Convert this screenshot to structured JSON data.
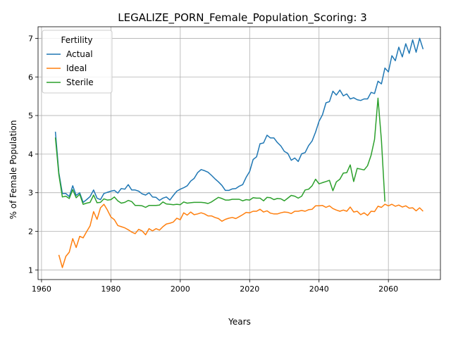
{
  "chart_data": {
    "type": "line",
    "title": "LEGALIZE_PORN_Female_Population_Scoring: 3",
    "xlabel": "Years",
    "ylabel": "% of Female Population",
    "xlim": [
      1959,
      2075
    ],
    "ylim": [
      0.75,
      7.3
    ],
    "xticks": [
      1960,
      1980,
      2000,
      2020,
      2040,
      2060
    ],
    "yticks": [
      1,
      2,
      3,
      4,
      5,
      6,
      7
    ],
    "grid": true,
    "legend": {
      "title": "Fertility",
      "placement": "upper-left"
    },
    "series": [
      {
        "name": "Actual",
        "color": "#1f77b4",
        "points": [
          [
            1964,
            4.58
          ],
          [
            1965,
            3.52
          ],
          [
            1966,
            2.98
          ],
          [
            1967,
            2.98
          ],
          [
            1968,
            2.9
          ],
          [
            1969,
            3.18
          ],
          [
            1970,
            2.93
          ],
          [
            1971,
            3.0
          ],
          [
            1972,
            2.75
          ],
          [
            1973,
            2.82
          ],
          [
            1974,
            2.9
          ],
          [
            1975,
            3.07
          ],
          [
            1976,
            2.86
          ],
          [
            1977,
            2.82
          ],
          [
            1978,
            2.98
          ],
          [
            1979,
            3.01
          ],
          [
            1980,
            3.04
          ],
          [
            1981,
            3.06
          ],
          [
            1982,
            2.99
          ],
          [
            1983,
            3.11
          ],
          [
            1984,
            3.09
          ],
          [
            1985,
            3.21
          ],
          [
            1986,
            3.07
          ],
          [
            1987,
            3.07
          ],
          [
            1988,
            3.04
          ],
          [
            1989,
            2.97
          ],
          [
            1990,
            2.94
          ],
          [
            1991,
            3.0
          ],
          [
            1992,
            2.89
          ],
          [
            1993,
            2.88
          ],
          [
            1994,
            2.8
          ],
          [
            1995,
            2.86
          ],
          [
            1996,
            2.89
          ],
          [
            1997,
            2.81
          ],
          [
            1998,
            2.93
          ],
          [
            1999,
            3.04
          ],
          [
            2000,
            3.09
          ],
          [
            2001,
            3.13
          ],
          [
            2002,
            3.18
          ],
          [
            2003,
            3.3
          ],
          [
            2004,
            3.37
          ],
          [
            2005,
            3.52
          ],
          [
            2006,
            3.6
          ],
          [
            2007,
            3.57
          ],
          [
            2008,
            3.53
          ],
          [
            2009,
            3.45
          ],
          [
            2010,
            3.36
          ],
          [
            2011,
            3.28
          ],
          [
            2012,
            3.19
          ],
          [
            2013,
            3.06
          ],
          [
            2014,
            3.06
          ],
          [
            2015,
            3.1
          ],
          [
            2016,
            3.11
          ],
          [
            2017,
            3.17
          ],
          [
            2018,
            3.21
          ],
          [
            2019,
            3.4
          ],
          [
            2020,
            3.55
          ],
          [
            2021,
            3.86
          ],
          [
            2022,
            3.93
          ],
          [
            2023,
            4.27
          ],
          [
            2024,
            4.29
          ],
          [
            2025,
            4.49
          ],
          [
            2026,
            4.42
          ],
          [
            2027,
            4.42
          ],
          [
            2028,
            4.3
          ],
          [
            2029,
            4.21
          ],
          [
            2030,
            4.07
          ],
          [
            2031,
            4.02
          ],
          [
            2032,
            3.84
          ],
          [
            2033,
            3.9
          ],
          [
            2034,
            3.81
          ],
          [
            2035,
            4.01
          ],
          [
            2036,
            4.04
          ],
          [
            2037,
            4.22
          ],
          [
            2038,
            4.34
          ],
          [
            2039,
            4.57
          ],
          [
            2040,
            4.85
          ],
          [
            2041,
            5.02
          ],
          [
            2042,
            5.33
          ],
          [
            2043,
            5.36
          ],
          [
            2044,
            5.63
          ],
          [
            2045,
            5.53
          ],
          [
            2046,
            5.66
          ],
          [
            2047,
            5.51
          ],
          [
            2048,
            5.56
          ],
          [
            2049,
            5.43
          ],
          [
            2050,
            5.46
          ],
          [
            2051,
            5.41
          ],
          [
            2052,
            5.39
          ],
          [
            2053,
            5.43
          ],
          [
            2054,
            5.43
          ],
          [
            2055,
            5.6
          ],
          [
            2056,
            5.57
          ],
          [
            2057,
            5.89
          ],
          [
            2058,
            5.82
          ],
          [
            2059,
            6.23
          ],
          [
            2060,
            6.13
          ],
          [
            2061,
            6.55
          ],
          [
            2062,
            6.42
          ],
          [
            2063,
            6.77
          ],
          [
            2064,
            6.52
          ],
          [
            2065,
            6.86
          ],
          [
            2066,
            6.61
          ],
          [
            2067,
            6.96
          ],
          [
            2068,
            6.64
          ],
          [
            2069,
            7.0
          ],
          [
            2070,
            6.72
          ]
        ]
      },
      {
        "name": "Ideal",
        "color": "#ff7f0e",
        "points": [
          [
            1965,
            1.39
          ],
          [
            1966,
            1.06
          ],
          [
            1967,
            1.35
          ],
          [
            1968,
            1.46
          ],
          [
            1969,
            1.81
          ],
          [
            1970,
            1.58
          ],
          [
            1971,
            1.87
          ],
          [
            1972,
            1.83
          ],
          [
            1973,
            1.99
          ],
          [
            1974,
            2.14
          ],
          [
            1975,
            2.51
          ],
          [
            1976,
            2.31
          ],
          [
            1977,
            2.61
          ],
          [
            1978,
            2.7
          ],
          [
            1979,
            2.55
          ],
          [
            1980,
            2.37
          ],
          [
            1981,
            2.3
          ],
          [
            1982,
            2.15
          ],
          [
            1983,
            2.12
          ],
          [
            1984,
            2.09
          ],
          [
            1985,
            2.04
          ],
          [
            1986,
            1.98
          ],
          [
            1987,
            1.94
          ],
          [
            1988,
            2.05
          ],
          [
            1989,
            2.01
          ],
          [
            1990,
            1.91
          ],
          [
            1991,
            2.07
          ],
          [
            1992,
            2.01
          ],
          [
            1993,
            2.07
          ],
          [
            1994,
            2.03
          ],
          [
            1995,
            2.12
          ],
          [
            1996,
            2.19
          ],
          [
            1997,
            2.21
          ],
          [
            1998,
            2.24
          ],
          [
            1999,
            2.34
          ],
          [
            2000,
            2.3
          ],
          [
            2001,
            2.48
          ],
          [
            2002,
            2.42
          ],
          [
            2003,
            2.5
          ],
          [
            2004,
            2.43
          ],
          [
            2005,
            2.45
          ],
          [
            2006,
            2.48
          ],
          [
            2007,
            2.45
          ],
          [
            2008,
            2.4
          ],
          [
            2009,
            2.4
          ],
          [
            2010,
            2.36
          ],
          [
            2011,
            2.33
          ],
          [
            2012,
            2.26
          ],
          [
            2013,
            2.31
          ],
          [
            2014,
            2.34
          ],
          [
            2015,
            2.36
          ],
          [
            2016,
            2.33
          ],
          [
            2017,
            2.38
          ],
          [
            2018,
            2.43
          ],
          [
            2019,
            2.49
          ],
          [
            2020,
            2.48
          ],
          [
            2021,
            2.52
          ],
          [
            2022,
            2.52
          ],
          [
            2023,
            2.57
          ],
          [
            2024,
            2.5
          ],
          [
            2025,
            2.53
          ],
          [
            2026,
            2.47
          ],
          [
            2027,
            2.45
          ],
          [
            2028,
            2.45
          ],
          [
            2029,
            2.48
          ],
          [
            2030,
            2.5
          ],
          [
            2031,
            2.49
          ],
          [
            2032,
            2.46
          ],
          [
            2033,
            2.52
          ],
          [
            2034,
            2.52
          ],
          [
            2035,
            2.54
          ],
          [
            2036,
            2.52
          ],
          [
            2037,
            2.56
          ],
          [
            2038,
            2.57
          ],
          [
            2039,
            2.66
          ],
          [
            2040,
            2.66
          ],
          [
            2041,
            2.67
          ],
          [
            2042,
            2.62
          ],
          [
            2043,
            2.66
          ],
          [
            2044,
            2.59
          ],
          [
            2045,
            2.55
          ],
          [
            2046,
            2.52
          ],
          [
            2047,
            2.55
          ],
          [
            2048,
            2.52
          ],
          [
            2049,
            2.63
          ],
          [
            2050,
            2.5
          ],
          [
            2051,
            2.52
          ],
          [
            2052,
            2.43
          ],
          [
            2053,
            2.48
          ],
          [
            2054,
            2.41
          ],
          [
            2055,
            2.52
          ],
          [
            2056,
            2.51
          ],
          [
            2057,
            2.65
          ],
          [
            2058,
            2.62
          ],
          [
            2059,
            2.7
          ],
          [
            2060,
            2.66
          ],
          [
            2061,
            2.7
          ],
          [
            2062,
            2.65
          ],
          [
            2063,
            2.68
          ],
          [
            2064,
            2.63
          ],
          [
            2065,
            2.66
          ],
          [
            2066,
            2.6
          ],
          [
            2067,
            2.61
          ],
          [
            2068,
            2.53
          ],
          [
            2069,
            2.61
          ],
          [
            2070,
            2.52
          ]
        ]
      },
      {
        "name": "Sterile",
        "color": "#2ca02c",
        "points": [
          [
            1964,
            4.43
          ],
          [
            1965,
            3.47
          ],
          [
            1966,
            2.89
          ],
          [
            1967,
            2.91
          ],
          [
            1968,
            2.85
          ],
          [
            1969,
            3.08
          ],
          [
            1970,
            2.87
          ],
          [
            1971,
            2.96
          ],
          [
            1972,
            2.7
          ],
          [
            1973,
            2.73
          ],
          [
            1974,
            2.75
          ],
          [
            1975,
            2.94
          ],
          [
            1976,
            2.74
          ],
          [
            1977,
            2.75
          ],
          [
            1978,
            2.84
          ],
          [
            1979,
            2.81
          ],
          [
            1980,
            2.82
          ],
          [
            1981,
            2.89
          ],
          [
            1982,
            2.79
          ],
          [
            1983,
            2.73
          ],
          [
            1984,
            2.75
          ],
          [
            1985,
            2.8
          ],
          [
            1986,
            2.77
          ],
          [
            1987,
            2.67
          ],
          [
            1988,
            2.67
          ],
          [
            1989,
            2.66
          ],
          [
            1990,
            2.62
          ],
          [
            1991,
            2.67
          ],
          [
            1992,
            2.67
          ],
          [
            1993,
            2.67
          ],
          [
            1994,
            2.68
          ],
          [
            1995,
            2.76
          ],
          [
            1996,
            2.71
          ],
          [
            1997,
            2.7
          ],
          [
            1998,
            2.69
          ],
          [
            1999,
            2.7
          ],
          [
            2000,
            2.69
          ],
          [
            2001,
            2.76
          ],
          [
            2002,
            2.73
          ],
          [
            2003,
            2.74
          ],
          [
            2004,
            2.75
          ],
          [
            2005,
            2.75
          ],
          [
            2006,
            2.75
          ],
          [
            2007,
            2.74
          ],
          [
            2008,
            2.72
          ],
          [
            2009,
            2.76
          ],
          [
            2010,
            2.82
          ],
          [
            2011,
            2.88
          ],
          [
            2012,
            2.85
          ],
          [
            2013,
            2.81
          ],
          [
            2014,
            2.81
          ],
          [
            2015,
            2.83
          ],
          [
            2016,
            2.83
          ],
          [
            2017,
            2.83
          ],
          [
            2018,
            2.79
          ],
          [
            2019,
            2.82
          ],
          [
            2020,
            2.81
          ],
          [
            2021,
            2.87
          ],
          [
            2022,
            2.86
          ],
          [
            2023,
            2.86
          ],
          [
            2024,
            2.79
          ],
          [
            2025,
            2.88
          ],
          [
            2026,
            2.87
          ],
          [
            2027,
            2.82
          ],
          [
            2028,
            2.85
          ],
          [
            2029,
            2.84
          ],
          [
            2030,
            2.79
          ],
          [
            2031,
            2.86
          ],
          [
            2032,
            2.93
          ],
          [
            2033,
            2.91
          ],
          [
            2034,
            2.86
          ],
          [
            2035,
            2.91
          ],
          [
            2036,
            3.07
          ],
          [
            2037,
            3.09
          ],
          [
            2038,
            3.18
          ],
          [
            2039,
            3.35
          ],
          [
            2040,
            3.23
          ],
          [
            2041,
            3.26
          ],
          [
            2042,
            3.29
          ],
          [
            2043,
            3.32
          ],
          [
            2044,
            3.05
          ],
          [
            2045,
            3.28
          ],
          [
            2046,
            3.35
          ],
          [
            2047,
            3.51
          ],
          [
            2048,
            3.52
          ],
          [
            2049,
            3.72
          ],
          [
            2050,
            3.29
          ],
          [
            2051,
            3.63
          ],
          [
            2052,
            3.61
          ],
          [
            2053,
            3.59
          ],
          [
            2054,
            3.7
          ],
          [
            2055,
            3.97
          ],
          [
            2056,
            4.38
          ],
          [
            2057,
            5.45
          ],
          [
            2058,
            4.35
          ],
          [
            2059,
            2.77
          ]
        ]
      }
    ]
  }
}
